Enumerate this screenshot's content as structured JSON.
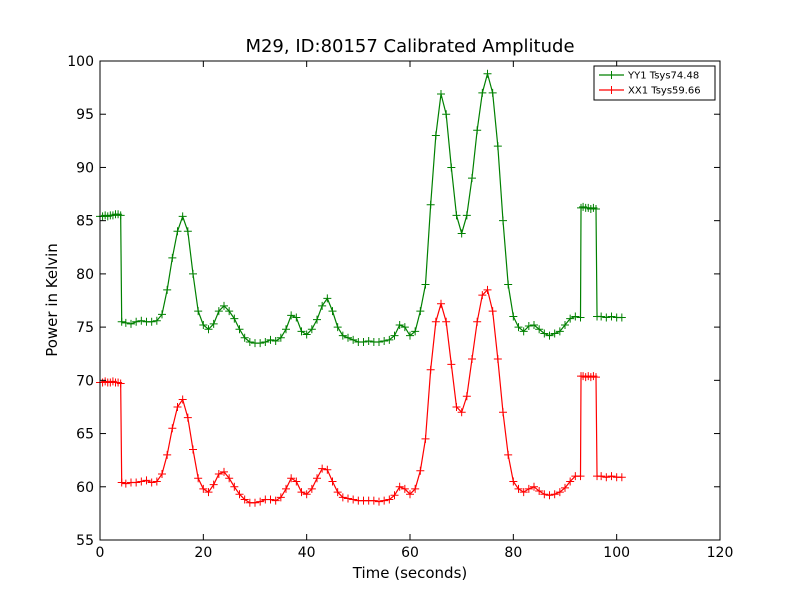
{
  "chart_data": {
    "type": "line",
    "title": "M29, ID:80157 Calibrated Amplitude",
    "xlabel": "Time (seconds)",
    "ylabel": "Power in Kelvin",
    "xlim": [
      0,
      120
    ],
    "ylim": [
      55,
      100
    ],
    "xticks": [
      "0",
      "20",
      "40",
      "60",
      "80",
      "100",
      "120"
    ],
    "yticks": [
      "55",
      "60",
      "65",
      "70",
      "75",
      "80",
      "85",
      "90",
      "95",
      "100"
    ],
    "grid": false,
    "legend_position": "top-right",
    "series": [
      {
        "name": "YY1 Tsys74.48",
        "color": "#008000",
        "marker": "+",
        "points": [
          [
            0,
            85.4
          ],
          [
            0.5,
            85.4
          ],
          [
            1,
            85.5
          ],
          [
            1.5,
            85.4
          ],
          [
            2,
            85.5
          ],
          [
            2.5,
            85.5
          ],
          [
            3,
            85.6
          ],
          [
            3.5,
            85.6
          ],
          [
            4,
            85.5
          ],
          [
            4.2,
            75.5
          ],
          [
            5,
            75.4
          ],
          [
            6,
            75.3
          ],
          [
            7,
            75.5
          ],
          [
            8,
            75.6
          ],
          [
            9,
            75.5
          ],
          [
            10,
            75.5
          ],
          [
            11,
            75.6
          ],
          [
            12,
            76.2
          ],
          [
            13,
            78.5
          ],
          [
            14,
            81.5
          ],
          [
            15,
            84
          ],
          [
            16,
            85.4
          ],
          [
            17,
            84
          ],
          [
            18,
            80
          ],
          [
            19,
            76.5
          ],
          [
            20,
            75.2
          ],
          [
            21,
            74.8
          ],
          [
            22,
            75.3
          ],
          [
            23,
            76.5
          ],
          [
            24,
            77
          ],
          [
            25,
            76.5
          ],
          [
            26,
            75.8
          ],
          [
            27,
            74.8
          ],
          [
            28,
            74
          ],
          [
            29,
            73.6
          ],
          [
            30,
            73.5
          ],
          [
            31,
            73.5
          ],
          [
            32,
            73.6
          ],
          [
            33,
            73.8
          ],
          [
            34,
            73.7
          ],
          [
            35,
            74
          ],
          [
            36,
            74.8
          ],
          [
            37,
            76.1
          ],
          [
            38,
            75.9
          ],
          [
            39,
            74.6
          ],
          [
            40,
            74.3
          ],
          [
            41,
            74.8
          ],
          [
            42,
            75.7
          ],
          [
            43,
            77
          ],
          [
            44,
            77.7
          ],
          [
            45,
            76.5
          ],
          [
            46,
            75
          ],
          [
            47,
            74.2
          ],
          [
            48,
            74
          ],
          [
            49,
            73.8
          ],
          [
            50,
            73.6
          ],
          [
            51,
            73.6
          ],
          [
            52,
            73.7
          ],
          [
            53,
            73.6
          ],
          [
            54,
            73.6
          ],
          [
            55,
            73.7
          ],
          [
            56,
            73.8
          ],
          [
            57,
            74.2
          ],
          [
            58,
            75.2
          ],
          [
            59,
            75
          ],
          [
            60,
            74.2
          ],
          [
            61,
            74.6
          ],
          [
            62,
            76.5
          ],
          [
            63,
            79
          ],
          [
            64,
            86.5
          ],
          [
            65,
            93
          ],
          [
            66,
            96.9
          ],
          [
            67,
            95
          ],
          [
            68,
            90
          ],
          [
            69,
            85.5
          ],
          [
            70,
            83.8
          ],
          [
            71,
            85.5
          ],
          [
            72,
            89
          ],
          [
            73,
            93.5
          ],
          [
            74,
            97
          ],
          [
            75,
            98.8
          ],
          [
            76,
            97
          ],
          [
            77,
            92
          ],
          [
            78,
            85
          ],
          [
            79,
            79
          ],
          [
            80,
            76
          ],
          [
            81,
            75
          ],
          [
            82,
            74.6
          ],
          [
            83,
            75.1
          ],
          [
            84,
            75.2
          ],
          [
            85,
            74.8
          ],
          [
            86,
            74.4
          ],
          [
            87,
            74.2
          ],
          [
            88,
            74.4
          ],
          [
            89,
            74.6
          ],
          [
            90,
            75.2
          ],
          [
            91,
            75.8
          ],
          [
            92,
            76
          ],
          [
            93,
            75.9
          ],
          [
            93.1,
            86.2
          ],
          [
            93.5,
            86.3
          ],
          [
            94,
            86.2
          ],
          [
            94.5,
            86.2
          ],
          [
            95,
            86.1
          ],
          [
            95.5,
            86.2
          ],
          [
            96,
            86.1
          ],
          [
            96.2,
            76
          ],
          [
            97,
            76
          ],
          [
            98,
            75.9
          ],
          [
            99,
            76
          ],
          [
            100,
            75.9
          ],
          [
            101,
            75.9
          ]
        ]
      },
      {
        "name": "XX1 Tsys59.66",
        "color": "#ff0000",
        "marker": "+",
        "points": [
          [
            0,
            69.8
          ],
          [
            0.5,
            69.8
          ],
          [
            1,
            69.9
          ],
          [
            1.5,
            69.8
          ],
          [
            2,
            69.8
          ],
          [
            2.5,
            69.9
          ],
          [
            3,
            69.8
          ],
          [
            3.5,
            69.8
          ],
          [
            4,
            69.7
          ],
          [
            4.2,
            60.4
          ],
          [
            5,
            60.3
          ],
          [
            6,
            60.4
          ],
          [
            7,
            60.4
          ],
          [
            8,
            60.5
          ],
          [
            9,
            60.6
          ],
          [
            10,
            60.4
          ],
          [
            11,
            60.5
          ],
          [
            12,
            61.2
          ],
          [
            13,
            63
          ],
          [
            14,
            65.5
          ],
          [
            15,
            67.5
          ],
          [
            16,
            68.2
          ],
          [
            17,
            66.5
          ],
          [
            18,
            63.5
          ],
          [
            19,
            60.8
          ],
          [
            20,
            59.8
          ],
          [
            21,
            59.5
          ],
          [
            22,
            60.2
          ],
          [
            23,
            61.2
          ],
          [
            24,
            61.4
          ],
          [
            25,
            60.8
          ],
          [
            26,
            60
          ],
          [
            27,
            59.3
          ],
          [
            28,
            58.8
          ],
          [
            29,
            58.5
          ],
          [
            30,
            58.5
          ],
          [
            31,
            58.6
          ],
          [
            32,
            58.8
          ],
          [
            33,
            58.8
          ],
          [
            34,
            58.7
          ],
          [
            35,
            59
          ],
          [
            36,
            59.8
          ],
          [
            37,
            60.8
          ],
          [
            38,
            60.5
          ],
          [
            39,
            59.5
          ],
          [
            40,
            59.3
          ],
          [
            41,
            59.8
          ],
          [
            42,
            60.8
          ],
          [
            43,
            61.7
          ],
          [
            44,
            61.6
          ],
          [
            45,
            60.5
          ],
          [
            46,
            59.5
          ],
          [
            47,
            59
          ],
          [
            48,
            58.9
          ],
          [
            49,
            58.8
          ],
          [
            50,
            58.7
          ],
          [
            51,
            58.7
          ],
          [
            52,
            58.7
          ],
          [
            53,
            58.7
          ],
          [
            54,
            58.6
          ],
          [
            55,
            58.7
          ],
          [
            56,
            58.8
          ],
          [
            57,
            59.2
          ],
          [
            58,
            60
          ],
          [
            59,
            59.8
          ],
          [
            60,
            59.3
          ],
          [
            61,
            59.8
          ],
          [
            62,
            61.5
          ],
          [
            63,
            64.5
          ],
          [
            64,
            71
          ],
          [
            65,
            75.5
          ],
          [
            66,
            77.2
          ],
          [
            67,
            75.5
          ],
          [
            68,
            71.5
          ],
          [
            69,
            67.5
          ],
          [
            70,
            67
          ],
          [
            71,
            68.5
          ],
          [
            72,
            72
          ],
          [
            73,
            75.5
          ],
          [
            74,
            78
          ],
          [
            75,
            78.5
          ],
          [
            76,
            76.5
          ],
          [
            77,
            72
          ],
          [
            78,
            67
          ],
          [
            79,
            63
          ],
          [
            80,
            60.5
          ],
          [
            81,
            59.8
          ],
          [
            82,
            59.5
          ],
          [
            83,
            59.8
          ],
          [
            84,
            60
          ],
          [
            85,
            59.6
          ],
          [
            86,
            59.3
          ],
          [
            87,
            59.2
          ],
          [
            88,
            59.3
          ],
          [
            89,
            59.5
          ],
          [
            90,
            59.9
          ],
          [
            91,
            60.5
          ],
          [
            92,
            61
          ],
          [
            93,
            61
          ],
          [
            93.1,
            70.4
          ],
          [
            93.5,
            70.4
          ],
          [
            94,
            70.3
          ],
          [
            94.5,
            70.4
          ],
          [
            95,
            70.3
          ],
          [
            95.5,
            70.4
          ],
          [
            96,
            70.3
          ],
          [
            96.2,
            61
          ],
          [
            97,
            61
          ],
          [
            98,
            60.9
          ],
          [
            99,
            61
          ],
          [
            100,
            60.9
          ],
          [
            101,
            60.9
          ]
        ]
      }
    ]
  }
}
